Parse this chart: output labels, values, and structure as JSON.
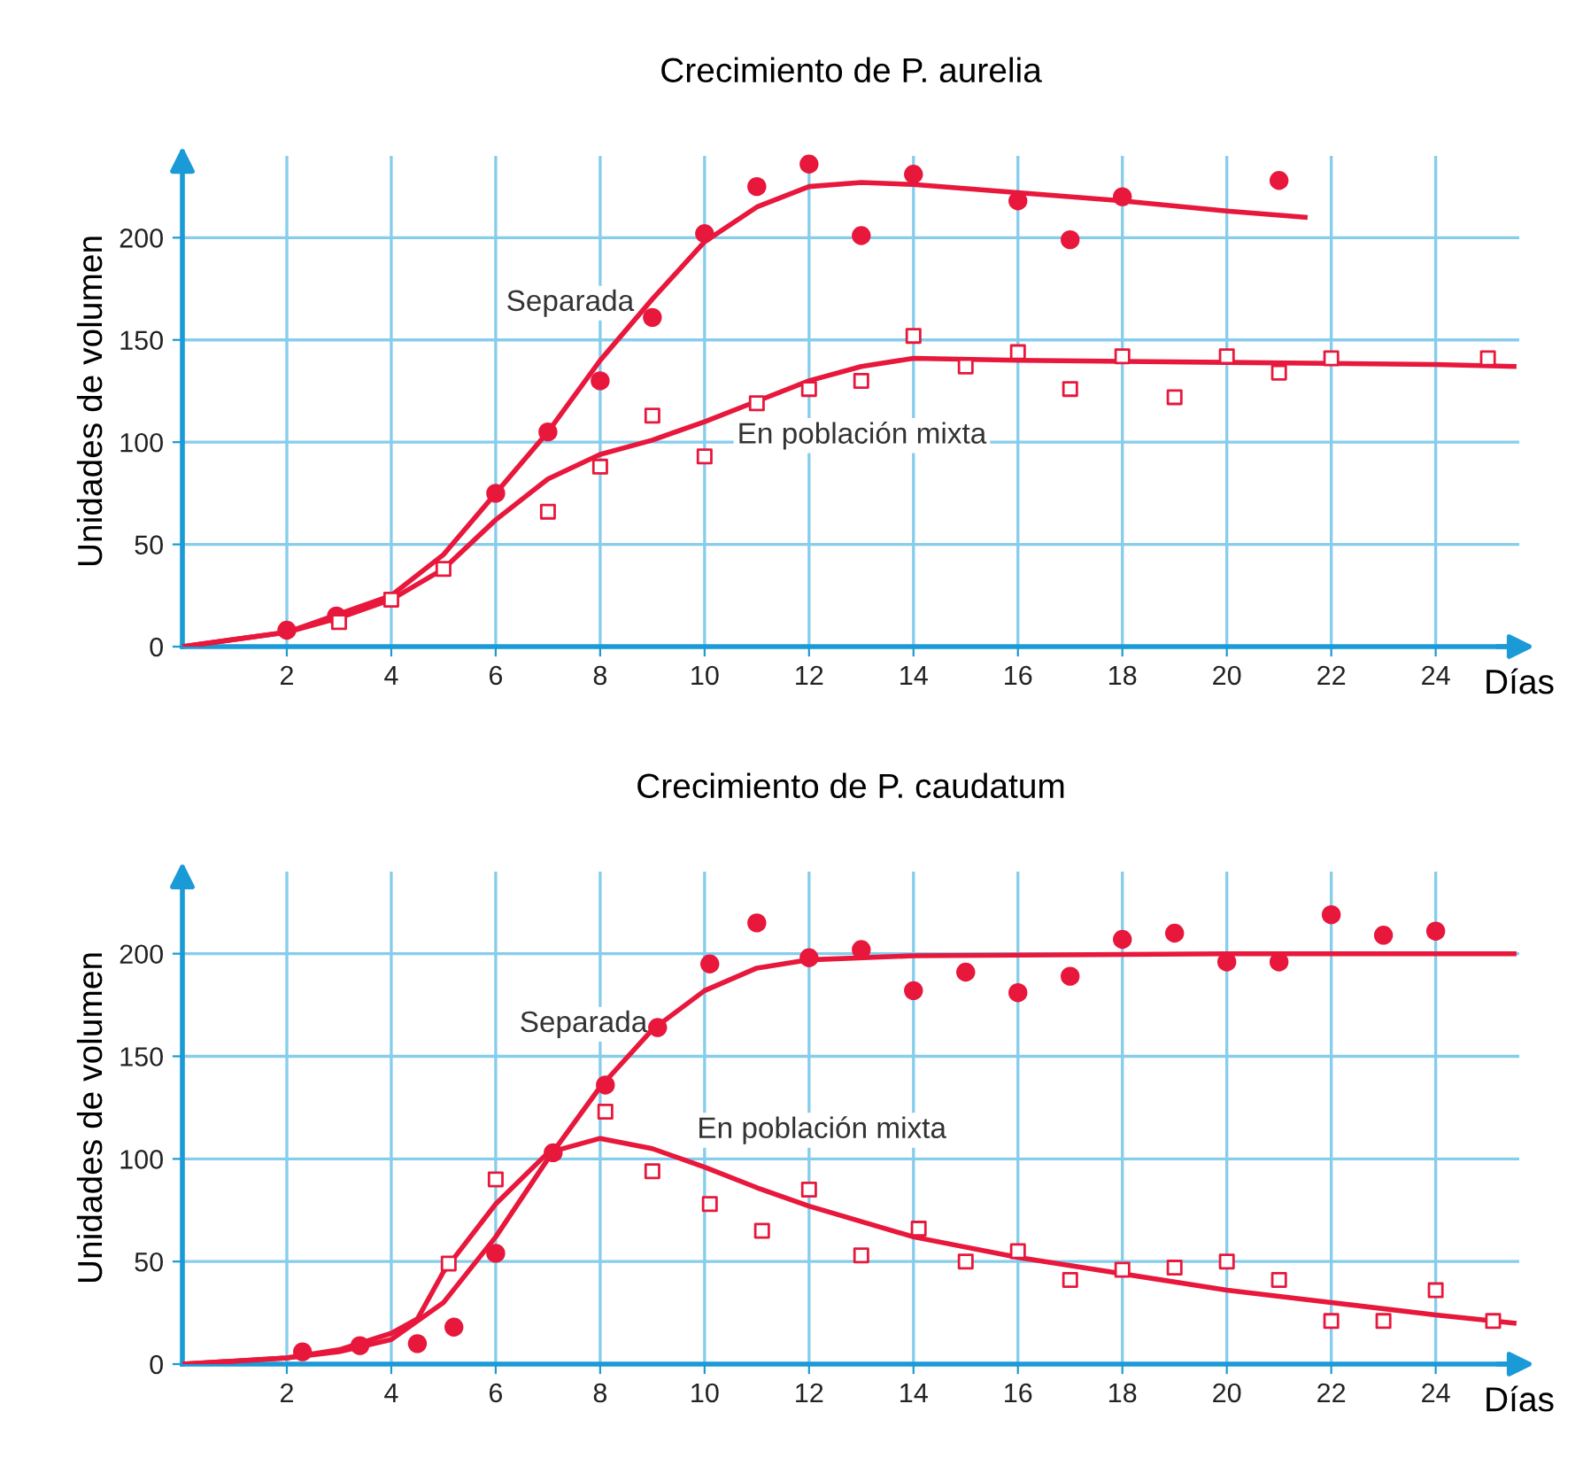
{
  "chart_data": [
    {
      "type": "scatter",
      "title": "Crecimiento de P. aurelia",
      "xlabel": "Días",
      "ylabel": "Unidades de volumen",
      "xlim": [
        0,
        25.6
      ],
      "ylim": [
        0,
        240
      ],
      "xticks": [
        2,
        4,
        6,
        8,
        10,
        12,
        14,
        16,
        18,
        20,
        22,
        24
      ],
      "yticks": [
        0,
        50,
        100,
        150,
        200
      ],
      "grid": true,
      "legend": false,
      "series": [
        {
          "marker": "circle",
          "color": "#e8173c",
          "x": [
            2,
            2.95,
            6,
            7,
            8,
            9,
            10,
            11,
            12,
            13,
            14,
            16,
            17,
            18,
            21
          ],
          "values": [
            8,
            15,
            75,
            105,
            130,
            161,
            202,
            225,
            236,
            201,
            231,
            218,
            199,
            220,
            228
          ]
        },
        {
          "marker": "square",
          "color": "#e8173c",
          "x": [
            3,
            4,
            5,
            7,
            8,
            9,
            10,
            11,
            12,
            13,
            14,
            15,
            16,
            17,
            18,
            19,
            20,
            21,
            22,
            25
          ],
          "values": [
            12,
            23,
            38,
            66,
            88,
            113,
            93,
            119,
            126,
            130,
            152,
            137,
            144,
            126,
            142,
            122,
            142,
            134,
            141,
            141
          ]
        },
        {
          "type": "line",
          "marker": "none",
          "color": "#e8173c",
          "x": [
            0,
            2,
            4,
            5,
            6,
            7,
            8,
            9,
            10,
            11,
            12,
            13,
            14,
            16,
            18,
            20,
            21.5
          ],
          "values": [
            0,
            7,
            25,
            45,
            75,
            105,
            140,
            170,
            198,
            215,
            225,
            227,
            226,
            222,
            218,
            213,
            210
          ]
        },
        {
          "type": "line",
          "marker": "none",
          "color": "#e8173c",
          "x": [
            0,
            2,
            3,
            4,
            5,
            6,
            7,
            8,
            9,
            10,
            11,
            12,
            13,
            14,
            16,
            20,
            24,
            25.5
          ],
          "values": [
            0,
            7,
            14,
            23,
            38,
            62,
            82,
            94,
            101,
            110,
            120,
            130,
            137,
            141,
            140,
            139,
            138,
            137
          ]
        }
      ],
      "annotations": [
        "Separada",
        "En población mixta"
      ]
    },
    {
      "type": "scatter",
      "title": "Crecimiento de P. caudatum",
      "xlabel": "Días",
      "ylabel": "Unidades de volumen",
      "xlim": [
        0,
        25.6
      ],
      "ylim": [
        0,
        240
      ],
      "xticks": [
        2,
        4,
        6,
        8,
        10,
        12,
        14,
        16,
        18,
        20,
        22,
        24
      ],
      "yticks": [
        0,
        50,
        100,
        150,
        200
      ],
      "grid": true,
      "legend": false,
      "series": [
        {
          "marker": "circle",
          "color": "#e8173c",
          "x": [
            2.3,
            3.4,
            4.5,
            5.2,
            6,
            7.1,
            8.1,
            9.1,
            10.1,
            11,
            12,
            13,
            14,
            15,
            16,
            17,
            18,
            19,
            20,
            21,
            22,
            23,
            24
          ],
          "values": [
            6,
            9,
            10,
            18,
            54,
            103,
            136,
            164,
            195,
            215,
            198,
            202,
            182,
            191,
            181,
            189,
            207,
            210,
            196,
            196,
            219,
            209,
            211
          ]
        },
        {
          "marker": "square",
          "color": "#e8173c",
          "x": [
            5.1,
            6,
            8.1,
            9,
            10.1,
            11.1,
            12,
            13,
            14.1,
            15,
            16,
            17,
            18,
            19,
            20,
            21,
            22,
            23,
            24,
            25.1
          ],
          "values": [
            49,
            90,
            123,
            94,
            78,
            65,
            85,
            53,
            66,
            50,
            55,
            41,
            46,
            47,
            50,
            41,
            21,
            21,
            36,
            21
          ]
        },
        {
          "type": "line",
          "marker": "none",
          "color": "#e8173c",
          "x": [
            0,
            2,
            3,
            4,
            5,
            6,
            7,
            8,
            9,
            10,
            11,
            12,
            14,
            20,
            25.5
          ],
          "values": [
            0,
            3,
            6,
            12,
            30,
            62,
            100,
            135,
            163,
            182,
            193,
            197,
            199,
            200,
            200
          ]
        },
        {
          "type": "line",
          "marker": "none",
          "color": "#e8173c",
          "x": [
            0,
            2,
            3,
            4,
            4.5,
            5,
            6,
            7,
            8,
            9,
            10,
            11,
            12,
            14,
            16,
            18,
            20,
            22,
            24,
            25.5
          ],
          "values": [
            0,
            3,
            7,
            15,
            22,
            45,
            78,
            103,
            110,
            105,
            96,
            86,
            77,
            62,
            52,
            44,
            36,
            30,
            24,
            20
          ]
        }
      ],
      "annotations": [
        "Separada",
        "En población mixta"
      ]
    }
  ]
}
